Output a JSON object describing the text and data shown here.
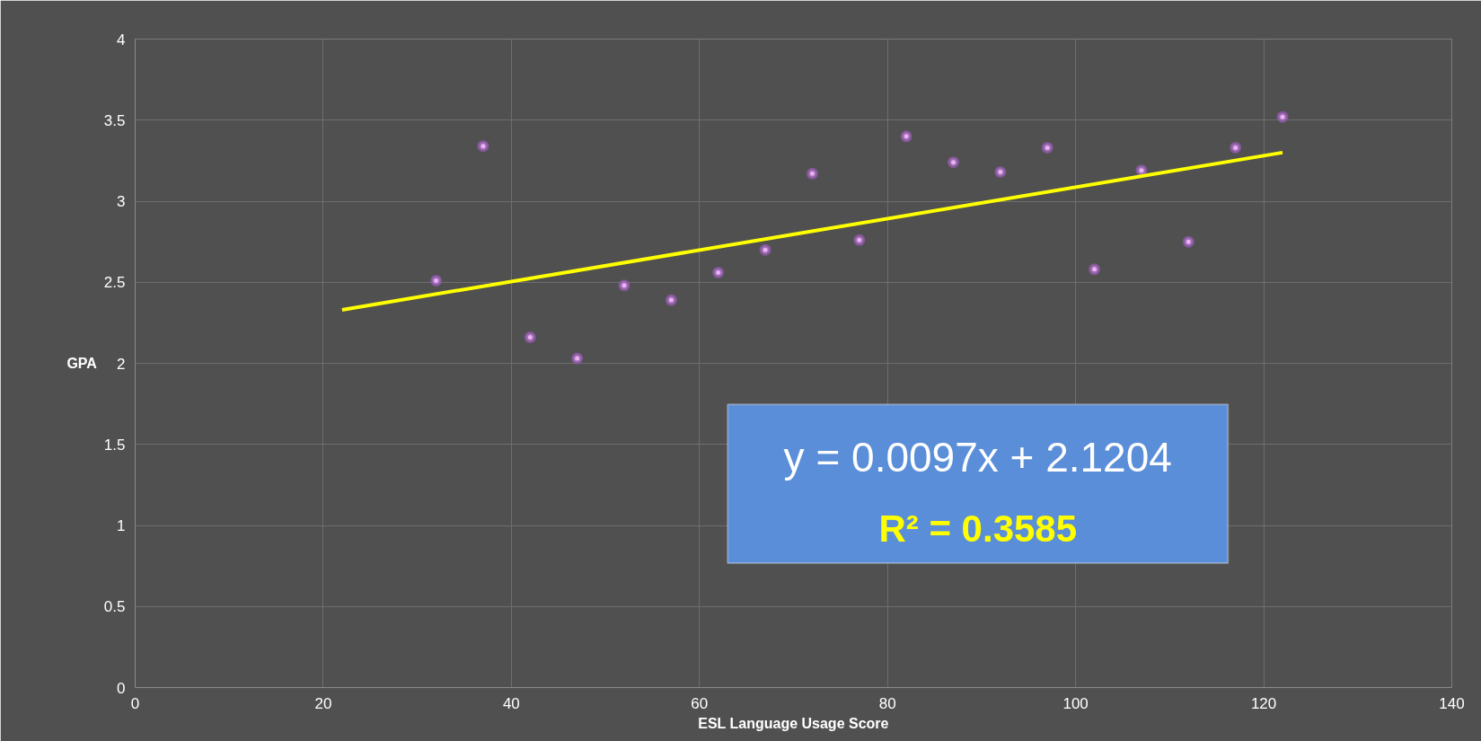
{
  "chart_data": {
    "type": "scatter",
    "xlabel": "ESL Language Usage Score",
    "ylabel": "GPA",
    "xlim": [
      0,
      140
    ],
    "xticks": [
      0,
      20,
      40,
      60,
      80,
      100,
      120,
      140
    ],
    "ylim": [
      0,
      4
    ],
    "yticks": [
      0,
      0.5,
      1,
      1.5,
      2,
      2.5,
      3,
      3.5,
      4
    ],
    "grid": true,
    "series": [
      {
        "color": "#e8b4f0",
        "marker": "circle",
        "x": [
          32,
          37,
          42,
          47,
          52,
          57,
          62,
          67,
          72,
          77,
          82,
          87,
          92,
          97,
          102,
          107,
          112,
          117,
          122
        ],
        "values": [
          2.51,
          3.34,
          2.16,
          2.03,
          2.48,
          2.39,
          2.56,
          2.7,
          3.17,
          2.76,
          3.4,
          3.24,
          3.18,
          3.33,
          2.58,
          3.19,
          2.75,
          3.33,
          3.52
        ]
      },
      {
        "type": "line",
        "color": "#ffff00",
        "x": [
          22,
          122
        ],
        "values": [
          2.33,
          3.3
        ]
      }
    ],
    "annotations": [
      "y = 0.0097x + 2.1204",
      "R² = 0.3585"
    ]
  }
}
